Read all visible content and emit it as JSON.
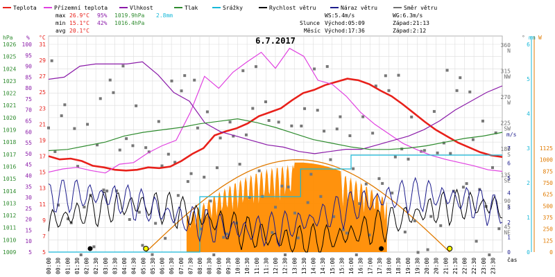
{
  "legend": [
    {
      "label": "Teplota",
      "color": "#e8201a"
    },
    {
      "label": "Přízemní teplota",
      "color": "#e040e0"
    },
    {
      "label": "Vlhkost",
      "color": "#8a1aa8"
    },
    {
      "label": "Tlak",
      "color": "#2e8b2e"
    },
    {
      "label": "Srážky",
      "color": "#16b8d8"
    },
    {
      "label": "Rychlost větru",
      "color": "#000000"
    },
    {
      "label": "Náraz větru",
      "color": "#1c1c8c"
    },
    {
      "label": "Směr větru",
      "color": "#707070"
    }
  ],
  "stats": {
    "max_label": "max",
    "max_temp": "26.9°C",
    "max_hum": "95%",
    "max_pres": "1019.9hPa",
    "rain": "2.8mm",
    "min_label": "min",
    "min_temp": "15.1°C",
    "min_hum": "42%",
    "min_pres": "1016.4hPa",
    "avg_label": "avg",
    "avg_temp": "20.1°C"
  },
  "wind_info": {
    "ws": "WS:5.4m/s",
    "wg": "WG:6.3m/s"
  },
  "sun_info": {
    "name": "Slunce",
    "rise": "Východ:05:09",
    "set": "Západ:21:13"
  },
  "moon_info": {
    "name": "Měsíc",
    "rise": "Východ:17:36",
    "set": "Západ:2:12"
  },
  "xaxis_label": "čas",
  "chart_data": {
    "type": "line",
    "title": "6.7.2017",
    "x_ticks": [
      "00:00",
      "00:30",
      "01:00",
      "01:30",
      "02:00",
      "02:30",
      "03:00",
      "03:30",
      "04:00",
      "04:30",
      "05:00",
      "05:30",
      "06:00",
      "06:30",
      "07:00",
      "07:30",
      "08:00",
      "08:30",
      "09:00",
      "09:30",
      "10:00",
      "10:30",
      "11:00",
      "11:30",
      "12:00",
      "12:30",
      "13:00",
      "13:30",
      "14:00",
      "14:30",
      "15:00",
      "15:30",
      "16:00",
      "16:30",
      "17:00",
      "17:30",
      "18:00",
      "18:30",
      "19:00",
      "19:30",
      "20:00",
      "20:30",
      "21:00",
      "21:30",
      "22:00",
      "22:30",
      "23:00",
      "23:30"
    ],
    "axes": {
      "hpa": {
        "unit": "hPa",
        "range": [
          1009,
          1026
        ],
        "ticks": [
          1009,
          1010,
          1011,
          1012,
          1013,
          1014,
          1015,
          1016,
          1017,
          1018,
          1019,
          1020,
          1021,
          1022,
          1023,
          1024,
          1025,
          1026
        ]
      },
      "humidity": {
        "unit": "%",
        "range": [
          5,
          100
        ],
        "ticks": [
          5,
          10,
          15,
          20,
          25,
          30,
          35,
          40,
          45,
          50,
          55,
          60,
          65,
          70,
          75,
          80,
          85,
          90,
          95,
          100
        ]
      },
      "temperature": {
        "unit": "°C",
        "range": [
          5,
          31
        ],
        "ticks": [
          5,
          7,
          9,
          11,
          13,
          15,
          17,
          19,
          21,
          23,
          25,
          27,
          29,
          31
        ]
      },
      "wind_direction": {
        "unit": "°",
        "ticks": [
          {
            "v": "360",
            "d": "N"
          },
          {
            "v": "315",
            "d": "NW"
          },
          {
            "v": "270",
            "d": "W"
          },
          {
            "v": "225",
            "d": "SW"
          },
          {
            "v": "180",
            "d": "S"
          },
          {
            "v": "135",
            "d": "SE"
          },
          {
            "v": "90",
            "d": "E"
          },
          {
            "v": "45",
            "d": "NE"
          }
        ]
      },
      "rain": {
        "unit": "mm",
        "range": [
          0,
          6
        ],
        "ticks": [
          0,
          1,
          2,
          3,
          4,
          5,
          6
        ]
      },
      "wind_speed": {
        "unit": "m/s",
        "range": [
          0,
          7
        ],
        "ticks": [
          0,
          1,
          2,
          3,
          4,
          5,
          6,
          7
        ]
      },
      "solar": {
        "unit": "W",
        "range": [
          0,
          1125
        ],
        "ticks": [
          0,
          125,
          250,
          375,
          500,
          625,
          750,
          875,
          1000,
          1125
        ]
      }
    },
    "series": [
      {
        "name": "Teplota",
        "unit": "°C",
        "color": "#e8201a",
        "points": [
          [
            0,
            17.0
          ],
          [
            1,
            16.6
          ],
          [
            2,
            16.7
          ],
          [
            3,
            16.4
          ],
          [
            4,
            15.8
          ],
          [
            5,
            15.6
          ],
          [
            6,
            15.3
          ],
          [
            7,
            15.2
          ],
          [
            8,
            15.3
          ],
          [
            9,
            15.6
          ],
          [
            10,
            15.5
          ],
          [
            11,
            15.7
          ],
          [
            12,
            16.4
          ],
          [
            13,
            17.3
          ],
          [
            14,
            18.0
          ],
          [
            15,
            19.6
          ],
          [
            16,
            20.1
          ],
          [
            17,
            20.5
          ],
          [
            18,
            21.1
          ],
          [
            19,
            22.0
          ],
          [
            20,
            22.5
          ],
          [
            21,
            23.0
          ],
          [
            22,
            24.0
          ],
          [
            23,
            24.9
          ],
          [
            24,
            25.3
          ],
          [
            25,
            25.9
          ],
          [
            26,
            26.3
          ],
          [
            27,
            26.7
          ],
          [
            28,
            26.5
          ],
          [
            29,
            26.0
          ],
          [
            30,
            25.2
          ],
          [
            31,
            24.5
          ],
          [
            32,
            23.5
          ],
          [
            33,
            22.4
          ],
          [
            34,
            21.3
          ],
          [
            35,
            20.3
          ],
          [
            36,
            19.5
          ],
          [
            37,
            18.7
          ],
          [
            38,
            18.1
          ],
          [
            39,
            17.5
          ],
          [
            40,
            17.1
          ],
          [
            41,
            16.9
          ]
        ]
      },
      {
        "name": "Přízemní teplota",
        "unit": "°C",
        "color": "#e040e0",
        "points": [
          [
            0,
            15.0
          ],
          [
            1,
            15.4
          ],
          [
            2,
            15.6
          ],
          [
            3,
            15.2
          ],
          [
            4,
            14.9
          ],
          [
            5,
            16.0
          ],
          [
            6,
            16.2
          ],
          [
            7,
            17.4
          ],
          [
            8,
            18.3
          ],
          [
            9,
            19.0
          ],
          [
            10,
            22.5
          ],
          [
            11,
            27.0
          ],
          [
            12,
            25.5
          ],
          [
            13,
            27.5
          ],
          [
            14,
            28.8
          ],
          [
            15,
            30.0
          ],
          [
            16,
            28.0
          ],
          [
            17,
            30.5
          ],
          [
            18,
            29.5
          ],
          [
            19,
            26.5
          ],
          [
            20,
            26.0
          ],
          [
            21,
            24.5
          ],
          [
            22,
            22.5
          ],
          [
            23,
            21.0
          ],
          [
            24,
            19.8
          ],
          [
            25,
            18.6
          ],
          [
            26,
            17.8
          ],
          [
            27,
            17.1
          ],
          [
            28,
            16.6
          ],
          [
            29,
            16.2
          ],
          [
            30,
            15.8
          ],
          [
            31,
            15.3
          ],
          [
            32,
            15.1
          ]
        ]
      },
      {
        "name": "Vlhkost",
        "unit": "%",
        "color": "#8a1aa8",
        "points": [
          [
            0,
            84
          ],
          [
            1,
            85
          ],
          [
            2,
            90
          ],
          [
            3,
            91
          ],
          [
            4,
            91
          ],
          [
            5,
            91
          ],
          [
            6,
            92
          ],
          [
            7,
            86
          ],
          [
            8,
            78
          ],
          [
            9,
            74
          ],
          [
            10,
            64
          ],
          [
            11,
            60
          ],
          [
            12,
            58
          ],
          [
            13,
            56
          ],
          [
            14,
            54
          ],
          [
            15,
            53
          ],
          [
            16,
            51
          ],
          [
            17,
            50
          ],
          [
            18,
            51
          ],
          [
            19,
            52
          ],
          [
            20,
            52
          ],
          [
            21,
            54
          ],
          [
            22,
            56
          ],
          [
            23,
            58
          ],
          [
            24,
            61
          ],
          [
            25,
            65
          ],
          [
            26,
            70
          ],
          [
            27,
            74
          ],
          [
            28,
            78
          ],
          [
            29,
            81
          ]
        ]
      },
      {
        "name": "Tlak",
        "unit": "hPa",
        "color": "#2e8b2e",
        "points": [
          [
            0,
            1017.3
          ],
          [
            1,
            1017.4
          ],
          [
            2,
            1017.7
          ],
          [
            3,
            1018.0
          ],
          [
            4,
            1018.5
          ],
          [
            5,
            1018.8
          ],
          [
            6,
            1019.0
          ],
          [
            7,
            1019.2
          ],
          [
            8,
            1019.5
          ],
          [
            9,
            1019.7
          ],
          [
            10,
            1019.9
          ],
          [
            11,
            1019.6
          ],
          [
            12,
            1019.2
          ],
          [
            13,
            1018.7
          ],
          [
            14,
            1018.2
          ],
          [
            15,
            1017.9
          ],
          [
            16,
            1017.6
          ],
          [
            17,
            1017.4
          ],
          [
            18,
            1017.4
          ],
          [
            19,
            1017.5
          ],
          [
            20,
            1017.7
          ],
          [
            21,
            1018.0
          ],
          [
            22,
            1018.3
          ],
          [
            23,
            1018.5
          ],
          [
            24,
            1018.8
          ]
        ]
      },
      {
        "name": "Srážky",
        "unit": "mm",
        "color": "#16b8d8",
        "points": [
          [
            0,
            0
          ],
          [
            1,
            0
          ],
          [
            2,
            0
          ],
          [
            3,
            1.6
          ],
          [
            4,
            1.6
          ],
          [
            5,
            2.4
          ],
          [
            6,
            2.8
          ],
          [
            7,
            2.8
          ],
          [
            8,
            2.8
          ],
          [
            9,
            2.8
          ]
        ]
      },
      {
        "name": "Rychlost větru",
        "unit": "m/s",
        "color": "#000000",
        "values": []
      },
      {
        "name": "Náraz větru",
        "unit": "m/s",
        "color": "#1c1c8c",
        "values": []
      },
      {
        "name": "Směr větru",
        "unit": "°",
        "color": "#707070",
        "values": []
      }
    ],
    "solar_envelope": {
      "unit": "W",
      "peak": 1000,
      "from": "05:09",
      "to": "21:13"
    }
  }
}
